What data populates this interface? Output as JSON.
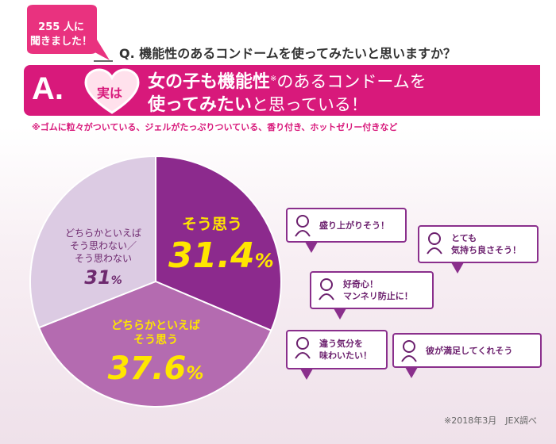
{
  "badge": {
    "line1": "255 人に",
    "line2": "聞きました！"
  },
  "question": "Q. 機能性のあるコンドームを使ってみたいと思いますか？",
  "answer": {
    "label": "A.",
    "heart_text": "実は",
    "line1_bold": "女の子も機能性",
    "line1_mark": "※",
    "line1_rest": "のあるコンドームを",
    "line2_bold": "使ってみたい",
    "line2_rest": "と思っている！"
  },
  "note": "※ゴムに粒々がついている、ジェルがたっぷりついている、香り付き、ホットゼリー付きなど",
  "chart_data": {
    "type": "pie",
    "slices": [
      {
        "label": "そう思う",
        "value": 31.4,
        "value_text": "31.4%",
        "color": "#8c2a8d"
      },
      {
        "label": "どちらかといえばそう思う",
        "value": 37.6,
        "value_text": "37.6%",
        "color": "#b46bb0"
      },
      {
        "label": "どちらかといえばそう思わない／そう思わない",
        "value": 31,
        "value_text": "31%",
        "color": "#dccbe3"
      }
    ]
  },
  "labels": {
    "agree_title": "そう思う",
    "agree_value": "31.4",
    "agree_unit": "%",
    "somewhat_line1": "どちらかといえば",
    "somewhat_line2": "そう思う",
    "somewhat_value": "37.6",
    "somewhat_unit": "%",
    "disagree_line1": "どちらかといえば",
    "disagree_line2": "そう思わない／",
    "disagree_line3": "そう思わない",
    "disagree_value": "31",
    "disagree_unit": "%"
  },
  "comments": [
    {
      "line1": "盛り上がりそう！",
      "line2": ""
    },
    {
      "line1": "とても",
      "line2": "気持ち良さそう！"
    },
    {
      "line1": "好奇心！",
      "line2": "マンネリ防止に！"
    },
    {
      "line1": "違う気分を",
      "line2": "味わいたい！"
    },
    {
      "line1": "彼が満足してくれそう",
      "line2": ""
    }
  ],
  "source": "※2018年3月　JEX調べ",
  "colors": {
    "accent": "#d8197b",
    "purple": "#8c2a8d",
    "yellow": "#ffe600"
  }
}
